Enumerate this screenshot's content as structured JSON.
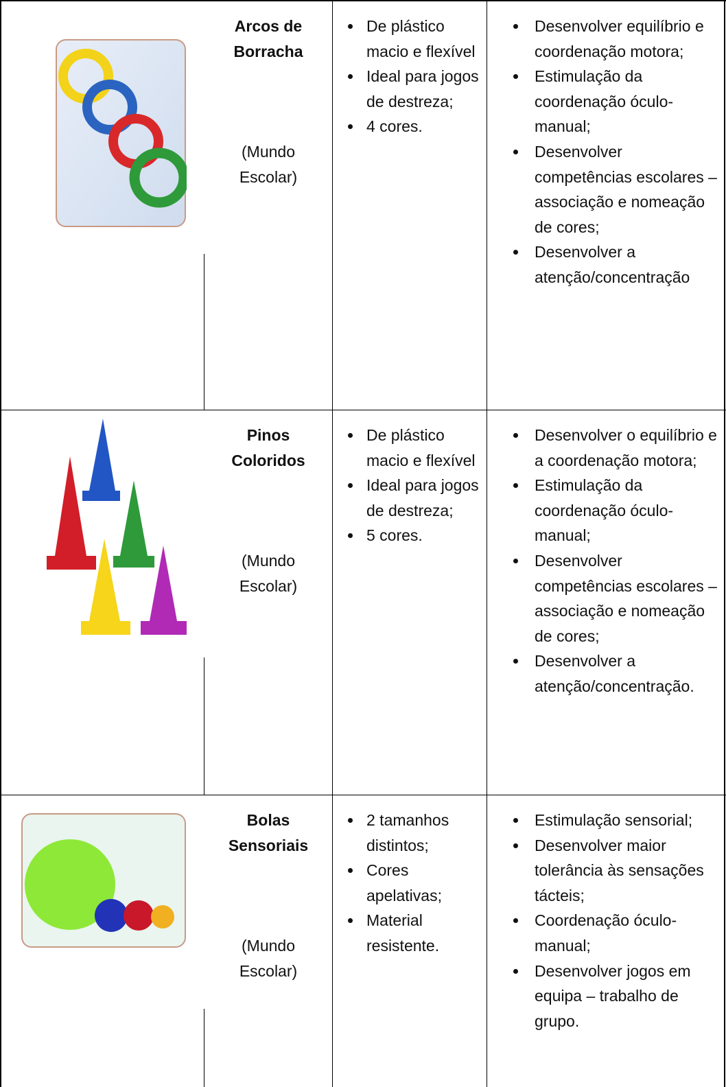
{
  "table": {
    "rows": [
      {
        "name": "Arcos de Borracha",
        "source": "(Mundo Escolar)",
        "features": [
          "De plástico macio e flexível",
          "Ideal para jogos de destreza;",
          "4 cores."
        ],
        "benefits": [
          "Desenvolver equilíbrio e coordenação motora;",
          "Estimulação da coordenação óculo-manual;",
          "Desenvolver competências escolares – associação e nomeação de cores;",
          "Desenvolver a atenção/concentração"
        ]
      },
      {
        "name": "Pinos Coloridos",
        "source": "(Mundo Escolar)",
        "features": [
          "De plástico macio e flexível",
          "Ideal para jogos de destreza;",
          "5 cores."
        ],
        "benefits": [
          "Desenvolver o equilíbrio e a coordenação motora;",
          "Estimulação da coordenação óculo-manual;",
          "Desenvolver competências escolares – associação e nomeação de cores;",
          "Desenvolver a atenção/concentração."
        ]
      },
      {
        "name": "Bolas Sensoriais",
        "source": "(Mundo Escolar)",
        "features": [
          "2 tamanhos distintos;",
          "Cores apelativas;",
          "Material resistente."
        ],
        "benefits": [
          "Estimulação sensorial;",
          "Desenvolver maior tolerância às sensações tácteis;",
          "Coordenação óculo-manual;",
          "Desenvolver jogos em equipa – trabalho de grupo."
        ]
      }
    ]
  }
}
